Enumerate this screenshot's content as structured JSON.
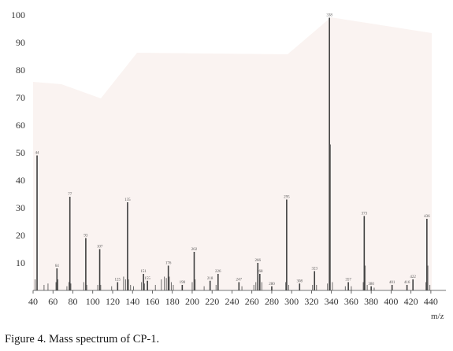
{
  "caption": "Figure 4. Mass spectrum of CP-1.",
  "chart_data": {
    "type": "bar",
    "xlabel": "m/z",
    "ylabel": "",
    "xlim": [
      40,
      448
    ],
    "ylim": [
      0,
      100
    ],
    "xticks": [
      40,
      60,
      80,
      100,
      120,
      140,
      160,
      180,
      200,
      220,
      240,
      260,
      280,
      300,
      320,
      340,
      360,
      380,
      400,
      420,
      440
    ],
    "yticks": [
      10,
      20,
      30,
      40,
      50,
      60,
      70,
      80,
      90,
      100
    ],
    "grid": false,
    "bar_color": "#3f3f3f",
    "background_tint": "#faf3f1",
    "peaks": [
      {
        "mz": 44,
        "intensity": 49,
        "label": "44"
      },
      {
        "mz": 64,
        "intensity": 8,
        "label": "64"
      },
      {
        "mz": 77,
        "intensity": 34,
        "label": "77"
      },
      {
        "mz": 93,
        "intensity": 19,
        "label": "93"
      },
      {
        "mz": 107,
        "intensity": 15,
        "label": "107"
      },
      {
        "mz": 125,
        "intensity": 3,
        "label": "125"
      },
      {
        "mz": 135,
        "intensity": 32,
        "label": "135"
      },
      {
        "mz": 151,
        "intensity": 6,
        "label": "151"
      },
      {
        "mz": 155,
        "intensity": 3.5,
        "label": "155"
      },
      {
        "mz": 176,
        "intensity": 9,
        "label": "176"
      },
      {
        "mz": 190,
        "intensity": 2,
        "label": "190"
      },
      {
        "mz": 202,
        "intensity": 14,
        "label": "202"
      },
      {
        "mz": 218,
        "intensity": 3.5,
        "label": "218"
      },
      {
        "mz": 226,
        "intensity": 6,
        "label": "226"
      },
      {
        "mz": 247,
        "intensity": 3,
        "label": "247"
      },
      {
        "mz": 266,
        "intensity": 10,
        "label": "266"
      },
      {
        "mz": 268,
        "intensity": 6,
        "label": "268"
      },
      {
        "mz": 280,
        "intensity": 1.5,
        "label": "280"
      },
      {
        "mz": 295,
        "intensity": 33,
        "label": "295"
      },
      {
        "mz": 308,
        "intensity": 2.5,
        "label": "308"
      },
      {
        "mz": 323,
        "intensity": 7,
        "label": "323"
      },
      {
        "mz": 338,
        "intensity": 99,
        "label": "338"
      },
      {
        "mz": 357,
        "intensity": 3,
        "label": "357"
      },
      {
        "mz": 373,
        "intensity": 27,
        "label": "373"
      },
      {
        "mz": 380,
        "intensity": 1.5,
        "label": "380"
      },
      {
        "mz": 401,
        "intensity": 2,
        "label": "401"
      },
      {
        "mz": 416,
        "intensity": 2,
        "label": "416"
      },
      {
        "mz": 422,
        "intensity": 4,
        "label": "422"
      },
      {
        "mz": 436,
        "intensity": 26,
        "label": "436"
      }
    ],
    "minor_peaks": [
      {
        "mz": 42,
        "intensity": 4
      },
      {
        "mz": 51,
        "intensity": 2
      },
      {
        "mz": 55,
        "intensity": 2.5
      },
      {
        "mz": 63,
        "intensity": 3
      },
      {
        "mz": 65,
        "intensity": 4
      },
      {
        "mz": 74,
        "intensity": 1.5
      },
      {
        "mz": 76,
        "intensity": 3
      },
      {
        "mz": 78,
        "intensity": 2.5
      },
      {
        "mz": 91,
        "intensity": 3
      },
      {
        "mz": 94,
        "intensity": 2
      },
      {
        "mz": 105,
        "intensity": 2
      },
      {
        "mz": 108,
        "intensity": 2
      },
      {
        "mz": 119,
        "intensity": 1.5
      },
      {
        "mz": 131,
        "intensity": 5
      },
      {
        "mz": 133,
        "intensity": 4
      },
      {
        "mz": 136,
        "intensity": 4
      },
      {
        "mz": 138,
        "intensity": 2
      },
      {
        "mz": 141,
        "intensity": 1.5
      },
      {
        "mz": 149,
        "intensity": 3
      },
      {
        "mz": 152,
        "intensity": 2.5
      },
      {
        "mz": 163,
        "intensity": 2
      },
      {
        "mz": 169,
        "intensity": 4
      },
      {
        "mz": 172,
        "intensity": 5
      },
      {
        "mz": 174,
        "intensity": 4.5
      },
      {
        "mz": 177,
        "intensity": 5
      },
      {
        "mz": 179,
        "intensity": 3
      },
      {
        "mz": 181,
        "intensity": 2
      },
      {
        "mz": 200,
        "intensity": 3
      },
      {
        "mz": 203,
        "intensity": 4
      },
      {
        "mz": 212,
        "intensity": 1.5
      },
      {
        "mz": 224,
        "intensity": 2
      },
      {
        "mz": 250,
        "intensity": 1.5
      },
      {
        "mz": 262,
        "intensity": 2
      },
      {
        "mz": 264,
        "intensity": 3
      },
      {
        "mz": 270,
        "intensity": 3
      },
      {
        "mz": 294,
        "intensity": 3
      },
      {
        "mz": 297,
        "intensity": 2
      },
      {
        "mz": 321,
        "intensity": 2
      },
      {
        "mz": 325,
        "intensity": 2
      },
      {
        "mz": 336,
        "intensity": 2.5
      },
      {
        "mz": 339,
        "intensity": 53
      },
      {
        "mz": 341,
        "intensity": 3
      },
      {
        "mz": 354,
        "intensity": 1.5
      },
      {
        "mz": 360,
        "intensity": 1.5
      },
      {
        "mz": 372,
        "intensity": 3
      },
      {
        "mz": 374,
        "intensity": 9
      },
      {
        "mz": 376,
        "intensity": 2
      },
      {
        "mz": 383,
        "intensity": 1
      },
      {
        "mz": 435,
        "intensity": 3
      },
      {
        "mz": 437,
        "intensity": 9
      },
      {
        "mz": 439,
        "intensity": 2
      }
    ]
  }
}
